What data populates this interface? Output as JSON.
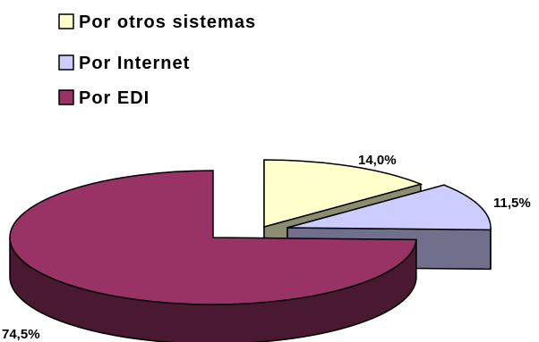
{
  "chart_data": {
    "type": "pie",
    "title": "",
    "legend_position": "top-left",
    "three_d": true,
    "slices": [
      {
        "label": "Por otros sistemas",
        "value": 14.0,
        "value_label": "14,0%",
        "color": "#ffffcc"
      },
      {
        "label": "Por Internet",
        "value": 11.5,
        "value_label": "11,5%",
        "color": "#ccccff"
      },
      {
        "label": "Por EDI",
        "value": 74.5,
        "value_label": "74,5%",
        "color": "#993366"
      }
    ]
  }
}
